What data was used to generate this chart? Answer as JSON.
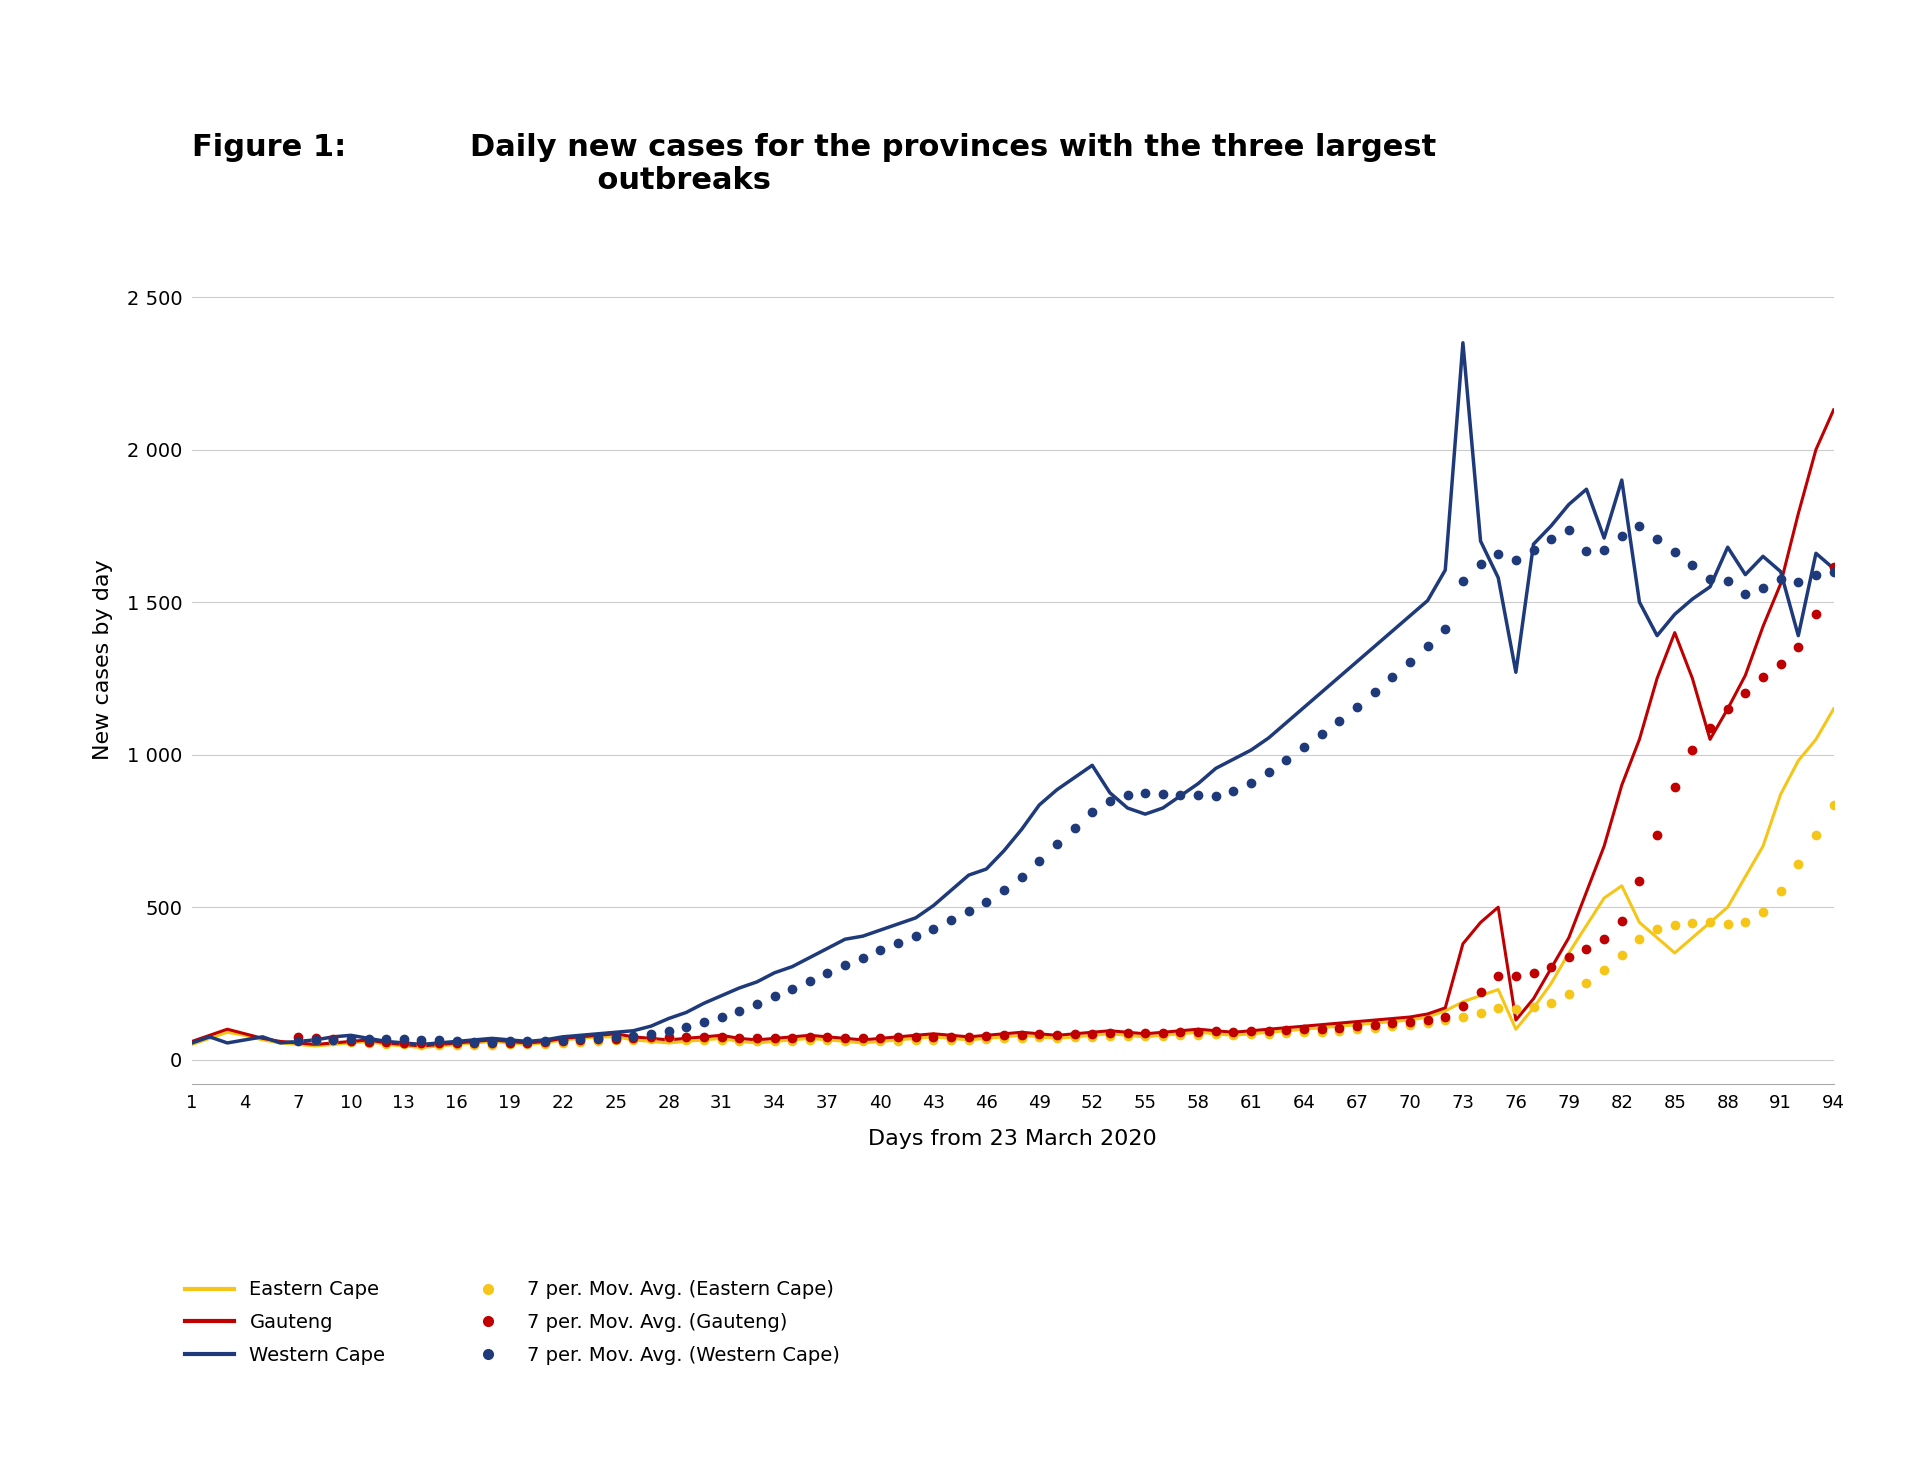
{
  "title_prefix": "Figure 1:",
  "title_main": "Daily new cases for the provinces with the three largest\n            outbreaks",
  "xlabel": "Days from 23 March 2020",
  "ylabel": "New cases by day",
  "yticks": [
    0,
    500,
    1000,
    1500,
    2000,
    2500
  ],
  "ytick_labels": [
    "0",
    "500",
    "1 000",
    "1 500",
    "2 000",
    "2 500"
  ],
  "color_ec": "#F5C518",
  "color_gauteng": "#C00000",
  "color_wc": "#1F3A7A",
  "background": "#FFFFFF",
  "western_cape": [
    55,
    75,
    55,
    65,
    75,
    55,
    60,
    65,
    75,
    80,
    70,
    60,
    55,
    50,
    55,
    60,
    65,
    70,
    65,
    60,
    65,
    75,
    80,
    85,
    90,
    95,
    110,
    135,
    155,
    185,
    210,
    235,
    255,
    285,
    305,
    335,
    365,
    395,
    405,
    425,
    445,
    465,
    505,
    555,
    605,
    625,
    685,
    755,
    835,
    885,
    925,
    965,
    875,
    825,
    805,
    825,
    865,
    905,
    955,
    985,
    1015,
    1055,
    1105,
    1155,
    1205,
    1255,
    1305,
    1355,
    1405,
    1455,
    1505,
    1605,
    2350,
    1700,
    1580,
    1270,
    1690,
    1750,
    1820,
    1870,
    1710,
    1900,
    1500,
    1390,
    1460,
    1510,
    1550,
    1680,
    1590,
    1650,
    1600,
    1390,
    1660,
    1610
  ],
  "gauteng": [
    60,
    80,
    100,
    85,
    70,
    60,
    55,
    50,
    55,
    60,
    65,
    55,
    50,
    45,
    50,
    55,
    60,
    65,
    60,
    55,
    60,
    70,
    75,
    80,
    85,
    75,
    70,
    65,
    70,
    75,
    80,
    70,
    65,
    70,
    75,
    80,
    75,
    70,
    65,
    70,
    75,
    80,
    85,
    80,
    75,
    80,
    85,
    90,
    85,
    80,
    85,
    90,
    95,
    90,
    85,
    90,
    95,
    100,
    95,
    90,
    95,
    100,
    105,
    110,
    115,
    120,
    125,
    130,
    135,
    140,
    150,
    170,
    380,
    450,
    500,
    130,
    200,
    300,
    400,
    550,
    700,
    900,
    1050,
    1250,
    1400,
    1250,
    1050,
    1150,
    1260,
    1420,
    1560,
    1790,
    2000,
    2130
  ],
  "eastern_cape": [
    50,
    70,
    90,
    80,
    65,
    55,
    50,
    45,
    50,
    55,
    60,
    50,
    45,
    40,
    45,
    50,
    55,
    60,
    55,
    50,
    55,
    65,
    70,
    75,
    75,
    65,
    60,
    55,
    60,
    65,
    70,
    60,
    55,
    60,
    65,
    70,
    65,
    60,
    55,
    60,
    65,
    70,
    75,
    70,
    65,
    70,
    75,
    80,
    75,
    70,
    75,
    80,
    85,
    80,
    75,
    80,
    85,
    90,
    85,
    80,
    85,
    90,
    95,
    100,
    105,
    110,
    115,
    120,
    125,
    130,
    140,
    160,
    190,
    210,
    230,
    100,
    170,
    250,
    350,
    440,
    530,
    570,
    450,
    400,
    350,
    400,
    450,
    500,
    600,
    700,
    870,
    980,
    1050,
    1150
  ]
}
